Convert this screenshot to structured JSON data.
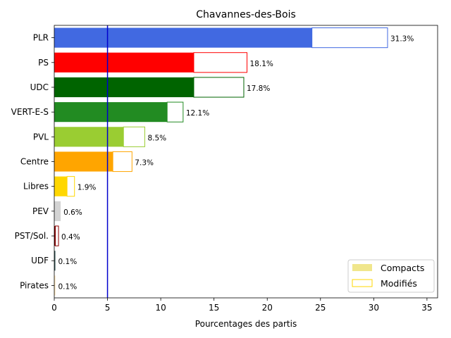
{
  "chart_data": {
    "type": "bar",
    "orientation": "horizontal",
    "title": "Chavannes-des-Bois",
    "xlabel": "Pourcentages des partis",
    "ylabel": "",
    "xlim": [
      0,
      36
    ],
    "xticks": [
      0,
      5,
      10,
      15,
      20,
      25,
      30,
      35
    ],
    "grid": false,
    "legend_position": "bottom-right",
    "categories": [
      "PLR",
      "PS",
      "UDC",
      "VERT-E-S",
      "PVL",
      "Centre",
      "Libres",
      "PEV",
      "PST/Sol.",
      "UDF",
      "Pirates"
    ],
    "series": [
      {
        "name": "Compacts",
        "legend_color": "#f0e68c",
        "values": [
          24.2,
          13.1,
          13.1,
          10.6,
          6.5,
          5.5,
          1.2,
          0.6,
          0.1,
          0.1,
          0.1
        ]
      },
      {
        "name": "Modifiés",
        "legend_color": "#ffd700",
        "values": [
          7.1,
          5.0,
          4.7,
          1.5,
          2.0,
          1.8,
          0.7,
          0.0,
          0.3,
          0.0,
          0.0
        ]
      }
    ],
    "totals": [
      31.3,
      18.1,
      17.8,
      12.1,
      8.5,
      7.3,
      1.9,
      0.6,
      0.4,
      0.1,
      0.1
    ],
    "total_labels": [
      "31.3%",
      "18.1%",
      "17.8%",
      "12.1%",
      "8.5%",
      "7.3%",
      "1.9%",
      "0.6%",
      "0.4%",
      "0.1%",
      "0.1%"
    ],
    "colors": [
      "#4169e1",
      "#ff0000",
      "#006400",
      "#228b22",
      "#9acd32",
      "#ffa500",
      "#ffd700",
      "#d3d3d3",
      "#8b0000",
      "#2f4f4f",
      "#ffe4b5"
    ],
    "reference_line": {
      "x": 5,
      "color": "#0000cd"
    }
  }
}
